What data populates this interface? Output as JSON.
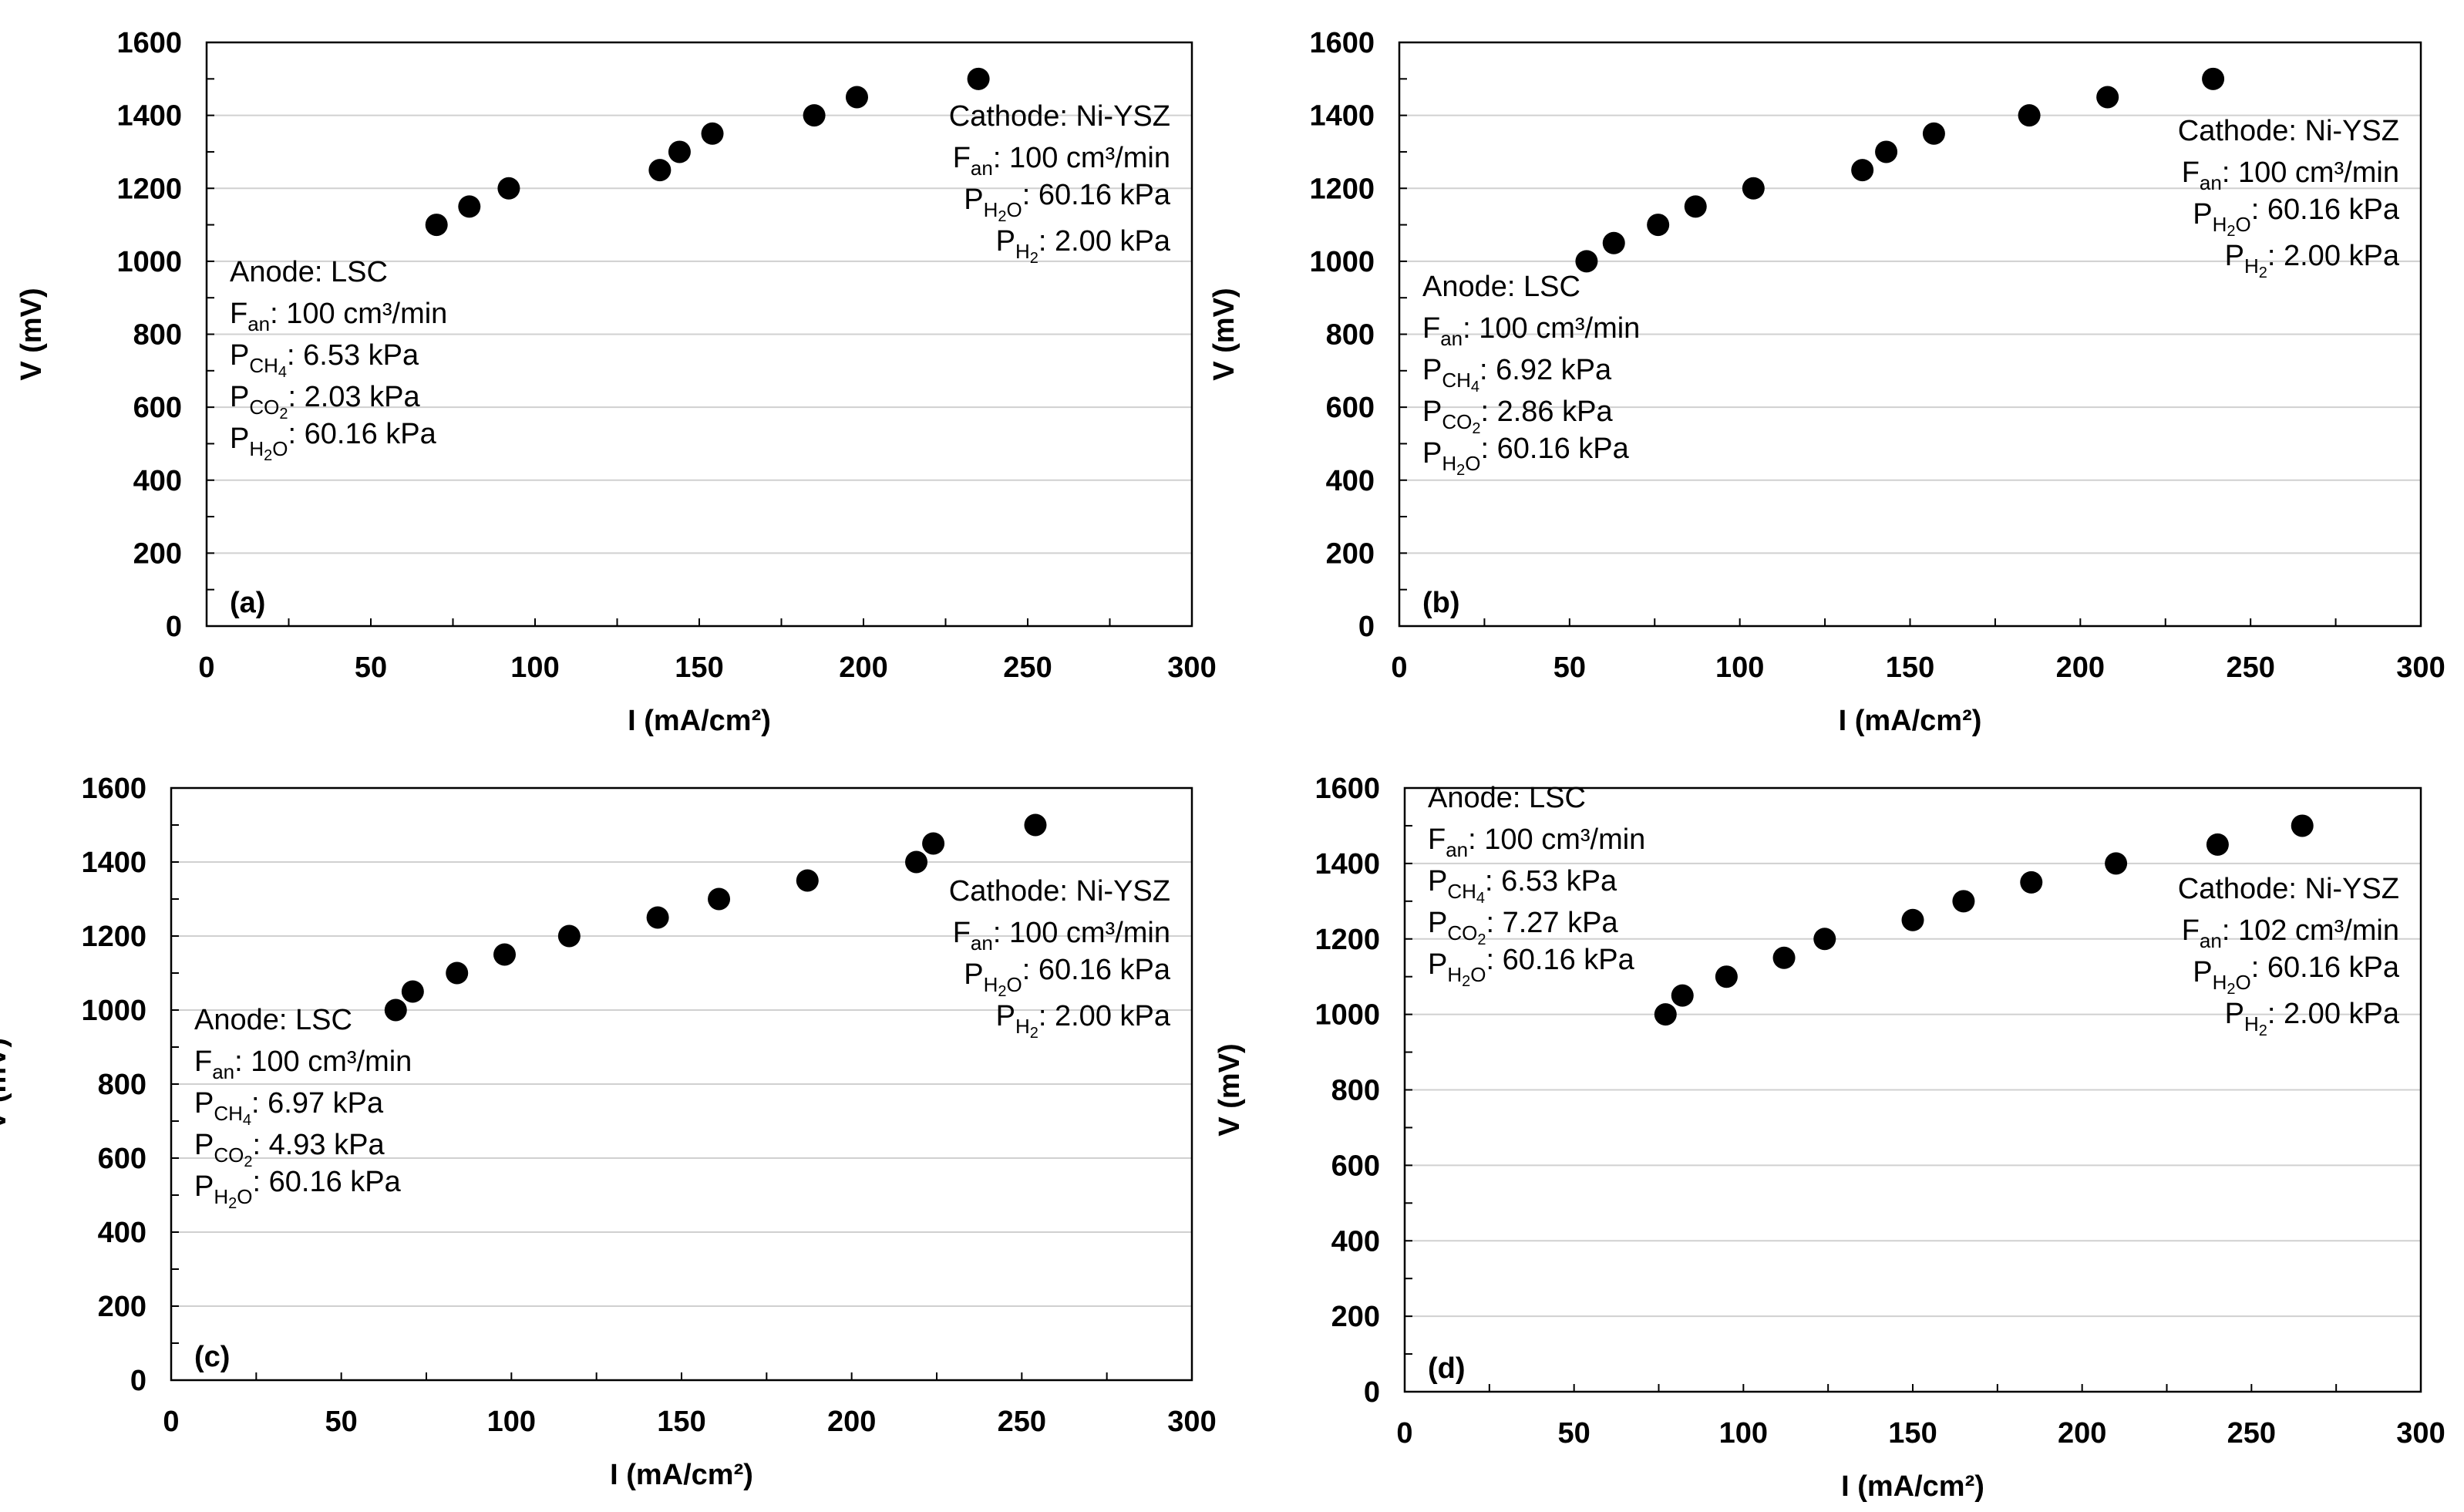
{
  "chart_data": [
    {
      "type": "scatter",
      "panel_label": "(a)",
      "xlabel": "I (mA/cm²)",
      "ylabel": "V (mV)",
      "xlim": [
        0,
        300
      ],
      "ylim": [
        0,
        1600
      ],
      "x_ticks": [
        "0",
        "50",
        "100",
        "150",
        "200",
        "250",
        "300"
      ],
      "y_ticks": [
        "0",
        "200",
        "400",
        "600",
        "800",
        "1000",
        "1200",
        "1400",
        "1600"
      ],
      "grid": true,
      "points": [
        [
          70,
          1100
        ],
        [
          80,
          1150
        ],
        [
          92,
          1200
        ],
        [
          138,
          1250
        ],
        [
          144,
          1300
        ],
        [
          154,
          1350
        ],
        [
          185,
          1400
        ],
        [
          198,
          1450
        ],
        [
          235,
          1500
        ]
      ],
      "anode": {
        "title": "Anode: LSC",
        "f_an": ": 100 cm³/min",
        "p_ch4": ": 6.53 kPa",
        "p_co2": ": 2.03 kPa",
        "p_h2o": ": 60.16 kPa"
      },
      "cathode": {
        "title": "Cathode: Ni-YSZ",
        "f_an": ": 100 cm³/min",
        "p_h2o": ": 60.16 kPa",
        "p_h2": ": 2.00 kPa"
      }
    },
    {
      "type": "scatter",
      "panel_label": "(b)",
      "xlabel": "I (mA/cm²)",
      "ylabel": "V (mV)",
      "xlim": [
        0,
        300
      ],
      "ylim": [
        0,
        1600
      ],
      "x_ticks": [
        "0",
        "50",
        "100",
        "150",
        "200",
        "250",
        "300"
      ],
      "y_ticks": [
        "0",
        "200",
        "400",
        "600",
        "800",
        "1000",
        "1200",
        "1400",
        "1600"
      ],
      "grid": true,
      "points": [
        [
          55,
          1000
        ],
        [
          63,
          1050
        ],
        [
          76,
          1100
        ],
        [
          87,
          1150
        ],
        [
          104,
          1200
        ],
        [
          136,
          1250
        ],
        [
          143,
          1300
        ],
        [
          157,
          1350
        ],
        [
          185,
          1400
        ],
        [
          208,
          1450
        ],
        [
          239,
          1500
        ]
      ],
      "anode": {
        "title": "Anode: LSC",
        "f_an": ": 100 cm³/min",
        "p_ch4": ": 6.92 kPa",
        "p_co2": ": 2.86 kPa",
        "p_h2o": ": 60.16 kPa"
      },
      "cathode": {
        "title": "Cathode: Ni-YSZ",
        "f_an": ": 100 cm³/min",
        "p_h2o": ": 60.16 kPa",
        "p_h2": ": 2.00 kPa"
      }
    },
    {
      "type": "scatter",
      "panel_label": "(c)",
      "xlabel": "I (mA/cm²)",
      "ylabel": "V (mV)",
      "xlim": [
        0,
        300
      ],
      "ylim": [
        0,
        1600
      ],
      "x_ticks": [
        "0",
        "50",
        "100",
        "150",
        "200",
        "250",
        "300"
      ],
      "y_ticks": [
        "0",
        "200",
        "400",
        "600",
        "800",
        "1000",
        "1200",
        "1400",
        "1600"
      ],
      "grid": true,
      "points": [
        [
          66,
          1000
        ],
        [
          71,
          1050
        ],
        [
          84,
          1100
        ],
        [
          98,
          1150
        ],
        [
          117,
          1200
        ],
        [
          143,
          1250
        ],
        [
          161,
          1300
        ],
        [
          187,
          1350
        ],
        [
          219,
          1400
        ],
        [
          224,
          1450
        ],
        [
          254,
          1500
        ]
      ],
      "anode": {
        "title": "Anode: LSC",
        "f_an": ": 100 cm³/min",
        "p_ch4": ": 6.97 kPa",
        "p_co2": ": 4.93 kPa",
        "p_h2o": ": 60.16 kPa"
      },
      "cathode": {
        "title": "Cathode: Ni-YSZ",
        "f_an": ": 100 cm³/min",
        "p_h2o": ": 60.16 kPa",
        "p_h2": ": 2.00 kPa"
      }
    },
    {
      "type": "scatter",
      "panel_label": "(d)",
      "xlabel": "I (mA/cm²)",
      "ylabel": "V (mV)",
      "xlim": [
        0,
        300
      ],
      "ylim": [
        0,
        1600
      ],
      "x_ticks": [
        "0",
        "50",
        "100",
        "150",
        "200",
        "250",
        "300"
      ],
      "y_ticks": [
        "0",
        "200",
        "400",
        "600",
        "800",
        "1000",
        "1200",
        "1400",
        "1600"
      ],
      "grid": true,
      "points": [
        [
          77,
          1000
        ],
        [
          82,
          1050
        ],
        [
          95,
          1100
        ],
        [
          112,
          1150
        ],
        [
          124,
          1200
        ],
        [
          150,
          1250
        ],
        [
          165,
          1300
        ],
        [
          185,
          1350
        ],
        [
          210,
          1400
        ],
        [
          240,
          1450
        ],
        [
          265,
          1500
        ]
      ],
      "anode": {
        "title": "Anode: LSC",
        "f_an": ": 100 cm³/min",
        "p_ch4": ": 6.53 kPa",
        "p_co2": ": 7.27 kPa",
        "p_h2o": ": 60.16 kPa"
      },
      "cathode": {
        "title": "Cathode: Ni-YSZ",
        "f_an": ": 102 cm³/min",
        "p_h2o": ": 60.16 kPa",
        "p_h2": ": 2.00 kPa"
      }
    }
  ]
}
